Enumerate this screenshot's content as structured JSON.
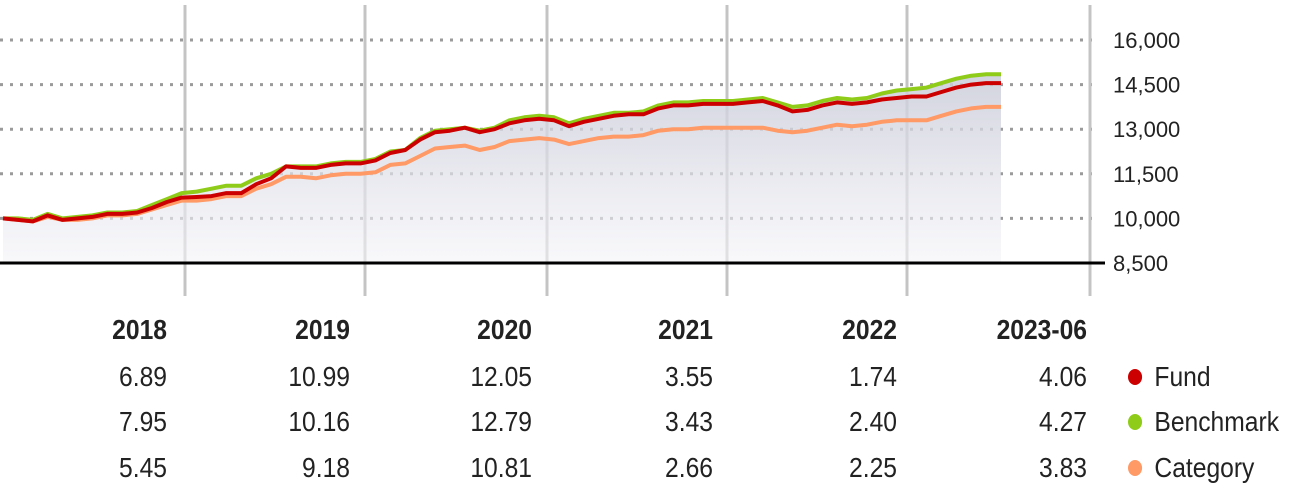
{
  "chart_data": {
    "type": "line",
    "ylim": [
      8500,
      16000
    ],
    "yticks": [
      {
        "value": 16000,
        "label": "16,000"
      },
      {
        "value": 14500,
        "label": "14,500"
      },
      {
        "value": 13000,
        "label": "13,000"
      },
      {
        "value": 11500,
        "label": "11,500"
      },
      {
        "value": 10000,
        "label": "10,000"
      },
      {
        "value": 8500,
        "label": "8,500"
      }
    ],
    "grid": true,
    "years": [
      "2018",
      "2019",
      "2020",
      "2021",
      "2022",
      "2023-06"
    ],
    "series": [
      {
        "name": "Fund",
        "color": "#cc0000",
        "returns": [
          "6.89",
          "10.99",
          "12.05",
          "3.55",
          "1.74",
          "4.06"
        ],
        "values": [
          10000,
          9950,
          9900,
          10100,
          9950,
          10000,
          10050,
          10150,
          10150,
          10200,
          10350,
          10550,
          10700,
          10720,
          10750,
          10850,
          10850,
          11150,
          11350,
          11750,
          11700,
          11700,
          11800,
          11850,
          11850,
          11950,
          12200,
          12300,
          12650,
          12900,
          12950,
          13050,
          12900,
          13000,
          13200,
          13300,
          13350,
          13300,
          13100,
          13250,
          13350,
          13450,
          13500,
          13500,
          13700,
          13800,
          13800,
          13850,
          13850,
          13850,
          13900,
          13950,
          13800,
          13600,
          13650,
          13800,
          13900,
          13850,
          13900,
          14000,
          14050,
          14100,
          14100,
          14250,
          14400,
          14500,
          14550,
          14550
        ]
      },
      {
        "name": "Benchmark",
        "color": "#8fcc1a",
        "returns": [
          "7.95",
          "10.16",
          "12.79",
          "3.43",
          "2.40",
          "4.27"
        ],
        "values": [
          10000,
          10000,
          9950,
          10150,
          10000,
          10050,
          10100,
          10200,
          10200,
          10250,
          10450,
          10650,
          10850,
          10900,
          11000,
          11100,
          11100,
          11350,
          11500,
          11750,
          11750,
          11750,
          11850,
          11900,
          11900,
          12000,
          12250,
          12300,
          12700,
          12950,
          13000,
          13050,
          12950,
          13050,
          13300,
          13400,
          13450,
          13400,
          13200,
          13350,
          13450,
          13550,
          13550,
          13600,
          13800,
          13900,
          13900,
          13950,
          13950,
          13950,
          14000,
          14050,
          13900,
          13750,
          13800,
          13950,
          14050,
          14000,
          14050,
          14200,
          14300,
          14350,
          14400,
          14550,
          14700,
          14800,
          14850,
          14850
        ]
      },
      {
        "name": "Category",
        "color": "#ff9966",
        "returns": [
          "5.45",
          "9.18",
          "10.81",
          "2.66",
          "2.25",
          "3.83"
        ],
        "values": [
          10000,
          9950,
          9900,
          10050,
          9950,
          9950,
          10000,
          10100,
          10100,
          10150,
          10300,
          10450,
          10600,
          10600,
          10650,
          10750,
          10750,
          11000,
          11150,
          11400,
          11400,
          11350,
          11450,
          11500,
          11500,
          11550,
          11800,
          11850,
          12100,
          12350,
          12400,
          12450,
          12300,
          12400,
          12600,
          12650,
          12700,
          12650,
          12500,
          12600,
          12700,
          12750,
          12750,
          12800,
          12950,
          13000,
          13000,
          13050,
          13050,
          13050,
          13050,
          13050,
          12950,
          12900,
          12950,
          13050,
          13150,
          13100,
          13150,
          13250,
          13300,
          13300,
          13300,
          13450,
          13600,
          13700,
          13750,
          13750
        ]
      }
    ]
  }
}
